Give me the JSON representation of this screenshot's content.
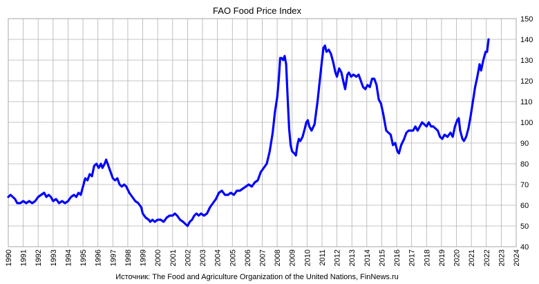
{
  "chart_data": {
    "type": "line",
    "title": "FAO Food Price Index",
    "source": "Источник: The Food and Agriculture Organization of the United Nations, FinNews.ru",
    "xlim": [
      1990,
      2024
    ],
    "ylim": [
      40,
      150
    ],
    "x_ticks": [
      1990,
      1991,
      1992,
      1993,
      1994,
      1995,
      1996,
      1997,
      1998,
      1999,
      2000,
      2001,
      2002,
      2003,
      2004,
      2005,
      2006,
      2007,
      2008,
      2009,
      2010,
      2011,
      2012,
      2013,
      2014,
      2015,
      2016,
      2017,
      2018,
      2019,
      2020,
      2021,
      2022,
      2023,
      2024
    ],
    "y_ticks": [
      40,
      50,
      60,
      70,
      80,
      90,
      100,
      110,
      120,
      130,
      140,
      150
    ],
    "y_axis_side": "right",
    "grid": true,
    "legend": "none",
    "line_color": "#0000ff",
    "series": [
      {
        "points": [
          [
            1990.0,
            64
          ],
          [
            1990.15,
            65
          ],
          [
            1990.3,
            64
          ],
          [
            1990.45,
            63
          ],
          [
            1990.6,
            61
          ],
          [
            1990.8,
            61
          ],
          [
            1991.0,
            62
          ],
          [
            1991.2,
            61
          ],
          [
            1991.4,
            62
          ],
          [
            1991.6,
            61
          ],
          [
            1991.8,
            62
          ],
          [
            1992.0,
            64
          ],
          [
            1992.2,
            65
          ],
          [
            1992.4,
            66
          ],
          [
            1992.55,
            64
          ],
          [
            1992.7,
            65
          ],
          [
            1992.85,
            64
          ],
          [
            1993.0,
            62
          ],
          [
            1993.2,
            63
          ],
          [
            1993.4,
            61
          ],
          [
            1993.6,
            62
          ],
          [
            1993.8,
            61
          ],
          [
            1994.0,
            62
          ],
          [
            1994.2,
            64
          ],
          [
            1994.4,
            65
          ],
          [
            1994.55,
            64
          ],
          [
            1994.7,
            66
          ],
          [
            1994.85,
            65
          ],
          [
            1995.0,
            69
          ],
          [
            1995.15,
            73
          ],
          [
            1995.3,
            72
          ],
          [
            1995.45,
            75
          ],
          [
            1995.6,
            74
          ],
          [
            1995.75,
            79
          ],
          [
            1995.9,
            80
          ],
          [
            1996.05,
            78
          ],
          [
            1996.2,
            80
          ],
          [
            1996.3,
            78
          ],
          [
            1996.45,
            80
          ],
          [
            1996.55,
            82
          ],
          [
            1996.7,
            79
          ],
          [
            1996.85,
            76
          ],
          [
            1997.0,
            73
          ],
          [
            1997.15,
            72
          ],
          [
            1997.3,
            73
          ],
          [
            1997.45,
            70
          ],
          [
            1997.6,
            69
          ],
          [
            1997.75,
            70
          ],
          [
            1997.9,
            69
          ],
          [
            1998.1,
            66
          ],
          [
            1998.3,
            64
          ],
          [
            1998.5,
            62
          ],
          [
            1998.7,
            61
          ],
          [
            1998.9,
            59
          ],
          [
            1999.0,
            56
          ],
          [
            1999.2,
            54
          ],
          [
            1999.4,
            53
          ],
          [
            1999.5,
            52
          ],
          [
            1999.65,
            53
          ],
          [
            1999.8,
            52
          ],
          [
            2000.0,
            53
          ],
          [
            2000.2,
            53
          ],
          [
            2000.4,
            52
          ],
          [
            2000.6,
            54
          ],
          [
            2000.8,
            55
          ],
          [
            2001.0,
            55
          ],
          [
            2001.15,
            56
          ],
          [
            2001.3,
            55
          ],
          [
            2001.5,
            53
          ],
          [
            2001.7,
            52
          ],
          [
            2001.85,
            51
          ],
          [
            2002.0,
            50
          ],
          [
            2002.15,
            52
          ],
          [
            2002.3,
            53
          ],
          [
            2002.45,
            55
          ],
          [
            2002.6,
            56
          ],
          [
            2002.75,
            55
          ],
          [
            2002.9,
            56
          ],
          [
            2003.1,
            55
          ],
          [
            2003.3,
            56
          ],
          [
            2003.5,
            59
          ],
          [
            2003.7,
            61
          ],
          [
            2003.9,
            63
          ],
          [
            2004.1,
            66
          ],
          [
            2004.3,
            67
          ],
          [
            2004.5,
            65
          ],
          [
            2004.7,
            65
          ],
          [
            2004.9,
            66
          ],
          [
            2005.1,
            65
          ],
          [
            2005.3,
            67
          ],
          [
            2005.5,
            67
          ],
          [
            2005.7,
            68
          ],
          [
            2005.9,
            69
          ],
          [
            2006.1,
            70
          ],
          [
            2006.3,
            69
          ],
          [
            2006.5,
            71
          ],
          [
            2006.7,
            72
          ],
          [
            2006.9,
            76
          ],
          [
            2007.1,
            78
          ],
          [
            2007.3,
            80
          ],
          [
            2007.5,
            86
          ],
          [
            2007.7,
            95
          ],
          [
            2007.85,
            105
          ],
          [
            2008.0,
            112
          ],
          [
            2008.1,
            120
          ],
          [
            2008.2,
            131
          ],
          [
            2008.3,
            131
          ],
          [
            2008.4,
            130
          ],
          [
            2008.5,
            132
          ],
          [
            2008.6,
            128
          ],
          [
            2008.7,
            112
          ],
          [
            2008.8,
            97
          ],
          [
            2008.9,
            89
          ],
          [
            2009.0,
            86
          ],
          [
            2009.15,
            85
          ],
          [
            2009.25,
            84
          ],
          [
            2009.35,
            89
          ],
          [
            2009.45,
            92
          ],
          [
            2009.55,
            91
          ],
          [
            2009.7,
            93
          ],
          [
            2009.85,
            97
          ],
          [
            2009.95,
            100
          ],
          [
            2010.05,
            101
          ],
          [
            2010.15,
            98
          ],
          [
            2010.3,
            96
          ],
          [
            2010.5,
            99
          ],
          [
            2010.7,
            110
          ],
          [
            2010.85,
            120
          ],
          [
            2011.0,
            130
          ],
          [
            2011.1,
            136
          ],
          [
            2011.2,
            137
          ],
          [
            2011.3,
            134
          ],
          [
            2011.45,
            135
          ],
          [
            2011.6,
            133
          ],
          [
            2011.75,
            129
          ],
          [
            2011.9,
            124
          ],
          [
            2012.0,
            122
          ],
          [
            2012.15,
            126
          ],
          [
            2012.3,
            124
          ],
          [
            2012.45,
            119
          ],
          [
            2012.55,
            116
          ],
          [
            2012.7,
            123
          ],
          [
            2012.8,
            124
          ],
          [
            2012.95,
            122
          ],
          [
            2013.1,
            123
          ],
          [
            2013.3,
            122
          ],
          [
            2013.45,
            123
          ],
          [
            2013.6,
            120
          ],
          [
            2013.75,
            117
          ],
          [
            2013.9,
            116
          ],
          [
            2014.05,
            118
          ],
          [
            2014.2,
            117
          ],
          [
            2014.35,
            121
          ],
          [
            2014.5,
            121
          ],
          [
            2014.65,
            118
          ],
          [
            2014.8,
            111
          ],
          [
            2014.95,
            109
          ],
          [
            2015.1,
            104
          ],
          [
            2015.3,
            96
          ],
          [
            2015.45,
            95
          ],
          [
            2015.6,
            94
          ],
          [
            2015.75,
            89
          ],
          [
            2015.9,
            90
          ],
          [
            2016.05,
            86
          ],
          [
            2016.15,
            85
          ],
          [
            2016.3,
            89
          ],
          [
            2016.5,
            92
          ],
          [
            2016.65,
            95
          ],
          [
            2016.8,
            96
          ],
          [
            2016.95,
            96
          ],
          [
            2017.1,
            96
          ],
          [
            2017.25,
            98
          ],
          [
            2017.4,
            96
          ],
          [
            2017.55,
            98
          ],
          [
            2017.7,
            100
          ],
          [
            2017.85,
            99
          ],
          [
            2018.0,
            98
          ],
          [
            2018.15,
            100
          ],
          [
            2018.3,
            98
          ],
          [
            2018.45,
            98
          ],
          [
            2018.6,
            97
          ],
          [
            2018.75,
            96
          ],
          [
            2018.9,
            93
          ],
          [
            2019.05,
            92
          ],
          [
            2019.2,
            94
          ],
          [
            2019.4,
            93
          ],
          [
            2019.6,
            95
          ],
          [
            2019.75,
            93
          ],
          [
            2019.9,
            98
          ],
          [
            2020.05,
            101
          ],
          [
            2020.15,
            102
          ],
          [
            2020.25,
            96
          ],
          [
            2020.4,
            92
          ],
          [
            2020.5,
            91
          ],
          [
            2020.65,
            93
          ],
          [
            2020.8,
            97
          ],
          [
            2020.95,
            103
          ],
          [
            2021.1,
            110
          ],
          [
            2021.25,
            117
          ],
          [
            2021.4,
            122
          ],
          [
            2021.55,
            128
          ],
          [
            2021.65,
            125
          ],
          [
            2021.8,
            130
          ],
          [
            2021.95,
            134
          ],
          [
            2022.05,
            134
          ],
          [
            2022.15,
            140
          ]
        ]
      }
    ]
  }
}
